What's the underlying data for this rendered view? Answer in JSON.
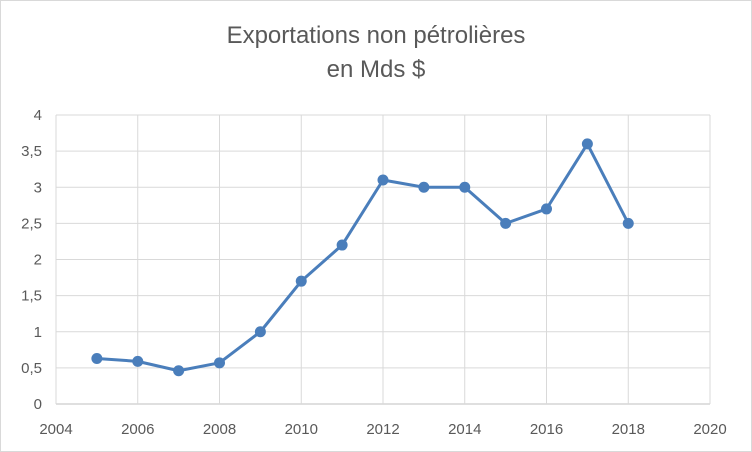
{
  "chart_data": {
    "type": "line",
    "title_line1": "Exportations non pétrolières",
    "title_line2": "en Mds $",
    "xlabel": "",
    "ylabel": "",
    "xlim": [
      2004,
      2020
    ],
    "ylim": [
      0,
      4
    ],
    "x_ticks": [
      "2004",
      "2006",
      "2008",
      "2010",
      "2012",
      "2014",
      "2016",
      "2018",
      "2020"
    ],
    "y_ticks": [
      "0",
      "0,5",
      "1",
      "1,5",
      "2",
      "2,5",
      "3",
      "3,5",
      "4"
    ],
    "grid": true,
    "legend": "none",
    "series_color": "#4a7ebb",
    "series": [
      {
        "x": [
          2005,
          2006,
          2007,
          2008,
          2009,
          2010,
          2011,
          2012,
          2013,
          2014,
          2015,
          2016,
          2017,
          2018
        ],
        "values": [
          0.63,
          0.59,
          0.46,
          0.57,
          1.0,
          1.7,
          2.2,
          3.1,
          3.0,
          3.0,
          2.5,
          2.7,
          3.6,
          2.5
        ]
      }
    ]
  }
}
